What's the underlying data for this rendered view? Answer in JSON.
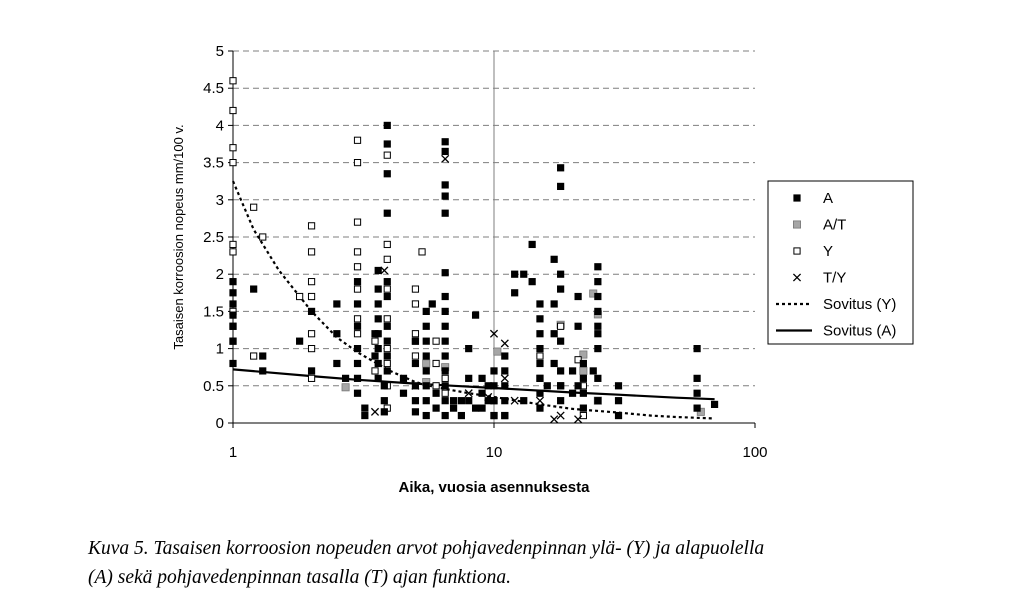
{
  "chart_data": {
    "type": "scatter",
    "title": "",
    "xlabel": "Aika, vuosia asennuksesta",
    "ylabel": "Tasaisen korroosion nopeus mm/100 v.",
    "x_scale": "log",
    "xlim": [
      1,
      100
    ],
    "ylim": [
      0,
      5
    ],
    "x_ticks": [
      "1",
      "10",
      "100"
    ],
    "y_ticks": [
      "0",
      "0.5",
      "1",
      "1.5",
      "2",
      "2.5",
      "3",
      "3.5",
      "4",
      "4.5",
      "5"
    ],
    "grid": "horizontal dashed",
    "legend_position": "right",
    "series": [
      {
        "name": "A",
        "marker": "filled-square",
        "color": "#000000",
        "points": [
          [
            1,
            0.8
          ],
          [
            1,
            1.1
          ],
          [
            1,
            1.3
          ],
          [
            1,
            1.45
          ],
          [
            1,
            1.6
          ],
          [
            1,
            1.75
          ],
          [
            1,
            1.9
          ],
          [
            1.2,
            1.8
          ],
          [
            1.3,
            0.9
          ],
          [
            1.3,
            0.7
          ],
          [
            1.8,
            1.1
          ],
          [
            2,
            1.5
          ],
          [
            2,
            0.7
          ],
          [
            2.5,
            1.6
          ],
          [
            2.5,
            1.2
          ],
          [
            2.5,
            0.8
          ],
          [
            2.7,
            0.6
          ],
          [
            3,
            1.9
          ],
          [
            3,
            1.6
          ],
          [
            3,
            1.3
          ],
          [
            3,
            1
          ],
          [
            3,
            0.8
          ],
          [
            3,
            0.6
          ],
          [
            3,
            0.4
          ],
          [
            3.2,
            0.2
          ],
          [
            3.2,
            0.1
          ],
          [
            3.5,
            1.2
          ],
          [
            3.5,
            0.9
          ],
          [
            3.6,
            2.05
          ],
          [
            3.6,
            1.8
          ],
          [
            3.6,
            1.6
          ],
          [
            3.6,
            1.4
          ],
          [
            3.6,
            1.2
          ],
          [
            3.6,
            1
          ],
          [
            3.6,
            0.8
          ],
          [
            3.6,
            0.6
          ],
          [
            3.8,
            0.5
          ],
          [
            3.8,
            0.3
          ],
          [
            3.8,
            0.15
          ],
          [
            3.9,
            4
          ],
          [
            3.9,
            3.75
          ],
          [
            3.9,
            3.35
          ],
          [
            3.9,
            2.82
          ],
          [
            3.9,
            1.9
          ],
          [
            3.9,
            1.7
          ],
          [
            3.9,
            1.3
          ],
          [
            3.9,
            1.1
          ],
          [
            3.9,
            0.9
          ],
          [
            3.9,
            0.7
          ],
          [
            4.5,
            0.6
          ],
          [
            4.5,
            0.4
          ],
          [
            5,
            1.1
          ],
          [
            5,
            0.8
          ],
          [
            5,
            0.5
          ],
          [
            5,
            0.3
          ],
          [
            5,
            0.15
          ],
          [
            5.5,
            1.5
          ],
          [
            5.5,
            1.3
          ],
          [
            5.5,
            1.1
          ],
          [
            5.5,
            0.9
          ],
          [
            5.5,
            0.7
          ],
          [
            5.5,
            0.5
          ],
          [
            5.5,
            0.3
          ],
          [
            5.5,
            0.1
          ],
          [
            5.8,
            1.6
          ],
          [
            6,
            0.4
          ],
          [
            6,
            0.2
          ],
          [
            6.5,
            3.78
          ],
          [
            6.5,
            3.65
          ],
          [
            6.5,
            3.2
          ],
          [
            6.5,
            3.05
          ],
          [
            6.5,
            2.82
          ],
          [
            6.5,
            2.02
          ],
          [
            6.5,
            1.7
          ],
          [
            6.5,
            1.5
          ],
          [
            6.5,
            1.3
          ],
          [
            6.5,
            1.1
          ],
          [
            6.5,
            0.9
          ],
          [
            6.5,
            0.7
          ],
          [
            6.5,
            0.5
          ],
          [
            6.5,
            0.3
          ],
          [
            6.5,
            0.1
          ],
          [
            7,
            0.3
          ],
          [
            7,
            0.2
          ],
          [
            7.5,
            0.3
          ],
          [
            7.5,
            0.1
          ],
          [
            8,
            1
          ],
          [
            8,
            0.6
          ],
          [
            8,
            0.3
          ],
          [
            8.5,
            1.45
          ],
          [
            8.5,
            0.2
          ],
          [
            9,
            0.6
          ],
          [
            9,
            0.4
          ],
          [
            9,
            0.2
          ],
          [
            9.5,
            0.5
          ],
          [
            9.5,
            0.3
          ],
          [
            10,
            0.7
          ],
          [
            10,
            0.5
          ],
          [
            10,
            0.3
          ],
          [
            10,
            0.1
          ],
          [
            11,
            0.9
          ],
          [
            11,
            0.7
          ],
          [
            11,
            0.5
          ],
          [
            11,
            0.3
          ],
          [
            11,
            0.1
          ],
          [
            12,
            2
          ],
          [
            12,
            1.75
          ],
          [
            13,
            2
          ],
          [
            13,
            0.3
          ],
          [
            14,
            2.4
          ],
          [
            14,
            1.9
          ],
          [
            15,
            1.6
          ],
          [
            15,
            1.4
          ],
          [
            15,
            1.2
          ],
          [
            15,
            1
          ],
          [
            15,
            0.8
          ],
          [
            15,
            0.6
          ],
          [
            15,
            0.4
          ],
          [
            15,
            0.2
          ],
          [
            16,
            0.5
          ],
          [
            17,
            2.2
          ],
          [
            17,
            1.6
          ],
          [
            17,
            1.2
          ],
          [
            17,
            0.8
          ],
          [
            18,
            3.43
          ],
          [
            18,
            3.18
          ],
          [
            18,
            2
          ],
          [
            18,
            1.8
          ],
          [
            18,
            1.1
          ],
          [
            18,
            0.7
          ],
          [
            18,
            0.5
          ],
          [
            18,
            0.3
          ],
          [
            20,
            0.7
          ],
          [
            20,
            0.4
          ],
          [
            21,
            1.7
          ],
          [
            21,
            1.3
          ],
          [
            21,
            0.5
          ],
          [
            22,
            0.8
          ],
          [
            22,
            0.6
          ],
          [
            22,
            0.4
          ],
          [
            22,
            0.2
          ],
          [
            24,
            0.7
          ],
          [
            25,
            2.1
          ],
          [
            25,
            1.9
          ],
          [
            25,
            1.7
          ],
          [
            25,
            1.5
          ],
          [
            25,
            1.3
          ],
          [
            25,
            1.2
          ],
          [
            25,
            1
          ],
          [
            25,
            0.6
          ],
          [
            25,
            0.3
          ],
          [
            30,
            0.5
          ],
          [
            30,
            0.3
          ],
          [
            30,
            0.1
          ],
          [
            60,
            1
          ],
          [
            60,
            0.6
          ],
          [
            60,
            0.4
          ],
          [
            60,
            0.2
          ],
          [
            70,
            0.25
          ]
        ]
      },
      {
        "name": "A/T",
        "marker": "grey-square",
        "color": "#a6a6a6",
        "points": [
          [
            2.7,
            0.48
          ],
          [
            5.5,
            0.8
          ],
          [
            5.5,
            0.55
          ],
          [
            6.5,
            0.75
          ],
          [
            10.3,
            0.96
          ],
          [
            18,
            1.32
          ],
          [
            22,
            0.92
          ],
          [
            22,
            0.7
          ],
          [
            24,
            1.74
          ],
          [
            25,
            1.46
          ],
          [
            25,
            0.3
          ],
          [
            62,
            0.15
          ]
        ]
      },
      {
        "name": "Y",
        "marker": "open-square",
        "color": "#000000",
        "points": [
          [
            1,
            4.6
          ],
          [
            1,
            4.2
          ],
          [
            1,
            3.7
          ],
          [
            1,
            3.5
          ],
          [
            1,
            2.4
          ],
          [
            1,
            2.3
          ],
          [
            1,
            1.5
          ],
          [
            1,
            1.3
          ],
          [
            1,
            1.1
          ],
          [
            1.2,
            2.9
          ],
          [
            1.2,
            0.9
          ],
          [
            1.3,
            2.5
          ],
          [
            1.8,
            1.7
          ],
          [
            2,
            2.65
          ],
          [
            2,
            2.3
          ],
          [
            2,
            1.9
          ],
          [
            2,
            1.7
          ],
          [
            2,
            1.2
          ],
          [
            2,
            1
          ],
          [
            2,
            0.6
          ],
          [
            3,
            3.8
          ],
          [
            3,
            3.5
          ],
          [
            3,
            2.7
          ],
          [
            3,
            2.3
          ],
          [
            3,
            2.1
          ],
          [
            3,
            1.8
          ],
          [
            3,
            1.4
          ],
          [
            3,
            1.2
          ],
          [
            3.5,
            1.1
          ],
          [
            3.5,
            0.7
          ],
          [
            3.9,
            3.6
          ],
          [
            3.9,
            2.4
          ],
          [
            3.9,
            2.2
          ],
          [
            3.9,
            1.8
          ],
          [
            3.9,
            1.4
          ],
          [
            3.9,
            1
          ],
          [
            3.9,
            0.8
          ],
          [
            3.9,
            0.5
          ],
          [
            3.9,
            0.2
          ],
          [
            5,
            1.8
          ],
          [
            5,
            1.6
          ],
          [
            5,
            1.2
          ],
          [
            5,
            1.1
          ],
          [
            5,
            0.9
          ],
          [
            5.3,
            2.3
          ],
          [
            6,
            1.1
          ],
          [
            6,
            0.8
          ],
          [
            6,
            0.5
          ],
          [
            6.5,
            0.6
          ],
          [
            6.5,
            0.4
          ],
          [
            10,
            0.3
          ],
          [
            10,
            0.1
          ],
          [
            11,
            0.1
          ],
          [
            15,
            0.9
          ],
          [
            15,
            0.6
          ],
          [
            18,
            1.3
          ],
          [
            18,
            0.5
          ],
          [
            21,
            0.85
          ],
          [
            22,
            0.5
          ],
          [
            22,
            0.1
          ]
        ]
      },
      {
        "name": "T/Y",
        "marker": "x",
        "color": "#000000",
        "points": [
          [
            3.5,
            0.15
          ],
          [
            3.8,
            2.05
          ],
          [
            5,
            0.5
          ],
          [
            6.5,
            3.55
          ],
          [
            8,
            0.4
          ],
          [
            9.5,
            0.35
          ],
          [
            10,
            1.2
          ],
          [
            11,
            1.07
          ],
          [
            11,
            0.6
          ],
          [
            12,
            0.3
          ],
          [
            15,
            0.3
          ],
          [
            17,
            0.05
          ],
          [
            18,
            0.1
          ],
          [
            21,
            0.05
          ]
        ]
      },
      {
        "name": "Sovitus (Y)",
        "line_style": "dashed",
        "color": "#000000",
        "points": [
          [
            1,
            3.25
          ],
          [
            1.2,
            2.6
          ],
          [
            1.5,
            2.05
          ],
          [
            2,
            1.5
          ],
          [
            2.5,
            1.15
          ],
          [
            3,
            0.95
          ],
          [
            4,
            0.7
          ],
          [
            5,
            0.55
          ],
          [
            6,
            0.48
          ],
          [
            8,
            0.4
          ],
          [
            10,
            0.35
          ],
          [
            15,
            0.25
          ],
          [
            20,
            0.19
          ],
          [
            30,
            0.14
          ],
          [
            40,
            0.1
          ],
          [
            50,
            0.08
          ],
          [
            70,
            0.06
          ]
        ]
      },
      {
        "name": "Sovitus (A)",
        "line_style": "solid",
        "color": "#000000",
        "points": [
          [
            1,
            0.72
          ],
          [
            2,
            0.63
          ],
          [
            3,
            0.58
          ],
          [
            5,
            0.53
          ],
          [
            7,
            0.5
          ],
          [
            10,
            0.47
          ],
          [
            20,
            0.41
          ],
          [
            30,
            0.38
          ],
          [
            50,
            0.34
          ],
          [
            70,
            0.32
          ]
        ]
      }
    ]
  },
  "caption": {
    "line1": "Kuva 5. Tasaisen korroosion nopeuden arvot pohjavedenpinnan ylä- (Y) ja alapuolella",
    "line2": "(A) sekä pohjavedenpinnan tasalla (T) ajan funktiona."
  }
}
